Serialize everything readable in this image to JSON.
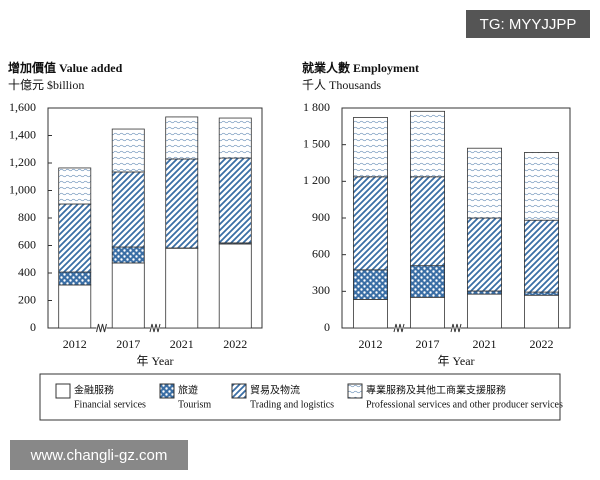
{
  "watermarks": [
    "TG: MYYJJPP",
    "www.changli-gz.com"
  ],
  "chart_data": [
    {
      "type": "stacked-bar",
      "title": "增加價值 Value added",
      "subtitle": "十億元 $billion",
      "xlabel": "年 Year",
      "categories": [
        "2012",
        "2017",
        "2021",
        "2022"
      ],
      "ylim": [
        0,
        1600
      ],
      "yticks": [
        0,
        200,
        400,
        600,
        800,
        {
          "value": 1000,
          "label": "1,000"
        },
        {
          "value": 1200,
          "label": "1,200"
        },
        {
          "value": 1400,
          "label": "1,400"
        },
        {
          "value": 1600,
          "label": "1,600"
        }
      ],
      "axis_breaks": true,
      "series": [
        {
          "name": "Financial services",
          "name_zh": "金融服務",
          "pattern": "solid",
          "color": "#ffffff",
          "values": [
            313,
            473,
            580,
            611
          ]
        },
        {
          "name": "Tourism",
          "name_zh": "旅遊",
          "pattern": "dots",
          "color": "#3a6ea5",
          "values": [
            94,
            116,
            2,
            8
          ]
        },
        {
          "name": "Trading and logistics",
          "name_zh": "貿易及物流",
          "pattern": "diagonal",
          "color": "#3a6ea5",
          "values": [
            495,
            546,
            647,
            617
          ]
        },
        {
          "name": "Professional services and other producer services",
          "name_zh": "專業服務及其他工商業支援服務",
          "pattern": "waves",
          "color": "#7a9cc0",
          "values": [
            262,
            312,
            306,
            291
          ]
        }
      ]
    },
    {
      "type": "stacked-bar",
      "title": "就業人數 Employment",
      "subtitle": "千人 Thousands",
      "xlabel": "年 Year",
      "categories": [
        "2012",
        "2017",
        "2021",
        "2022"
      ],
      "ylim": [
        0,
        1800
      ],
      "yticks": [
        0,
        300,
        600,
        900,
        {
          "value": 1200,
          "label": "1 200"
        },
        {
          "value": 1500,
          "label": "1 500"
        },
        {
          "value": 1800,
          "label": "1 800"
        }
      ],
      "axis_breaks": true,
      "series": [
        {
          "values": [
            234,
            251,
            277,
            268
          ]
        },
        {
          "values": [
            242,
            259,
            26,
            26
          ]
        },
        {
          "values": [
            761,
            727,
            597,
            588
          ]
        },
        {
          "values": [
            485,
            536,
            571,
            554
          ]
        }
      ]
    }
  ]
}
